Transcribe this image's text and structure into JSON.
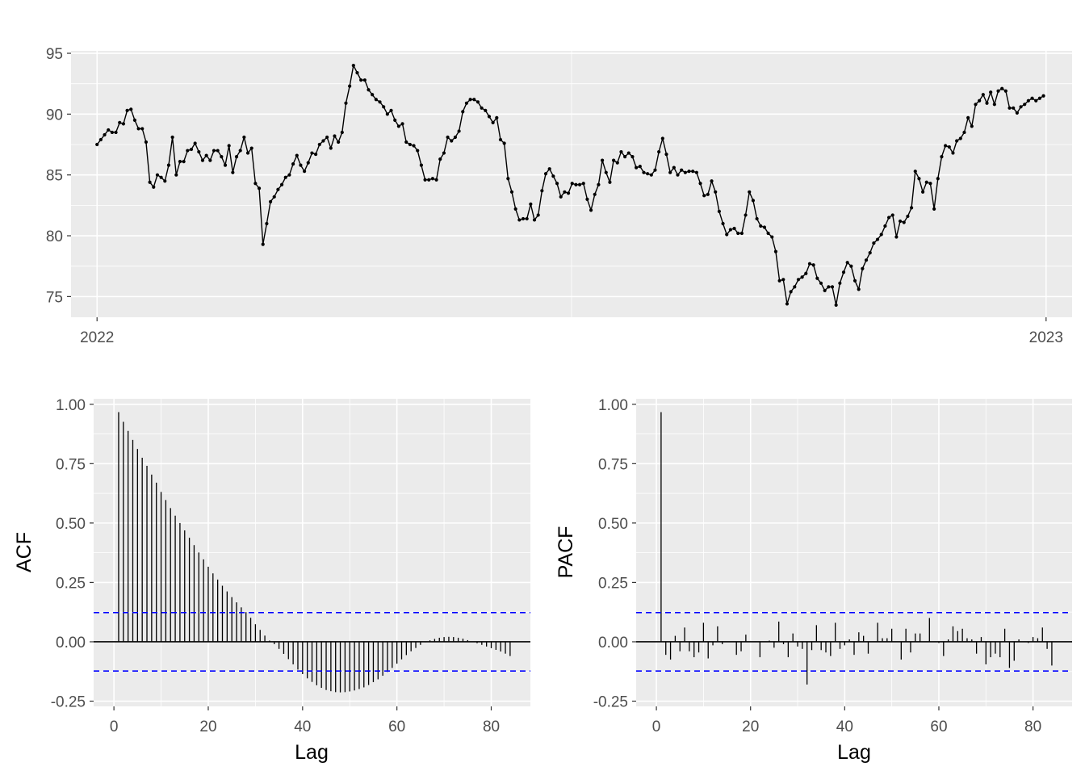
{
  "chart_data": [
    {
      "type": "line",
      "x_ticks": [
        "2022",
        "2023"
      ],
      "y_ticks": [
        "75",
        "80",
        "85",
        "90",
        "95"
      ],
      "ylim": [
        73.3,
        95.2
      ],
      "x_range_days": [
        -10,
        375
      ],
      "points": "yes",
      "grid": "on",
      "color": "#000000",
      "series": [
        {
          "values": [
            87.5,
            87.9,
            88.3,
            88.7,
            88.5,
            88.5,
            89.3,
            89.2,
            90.3,
            90.4,
            89.5,
            88.8,
            88.8,
            87.7,
            84.4,
            84.0,
            85.0,
            84.8,
            84.5,
            85.8,
            88.1,
            85.0,
            86.1,
            86.1,
            87.0,
            87.1,
            87.6,
            86.9,
            86.2,
            86.6,
            86.2,
            87.0,
            87.0,
            86.5,
            85.8,
            87.4,
            85.2,
            86.5,
            87.0,
            88.1,
            86.8,
            87.2,
            84.3,
            83.9,
            79.3,
            81.0,
            82.8,
            83.2,
            83.8,
            84.2,
            84.8,
            85.0,
            85.9,
            86.6,
            85.8,
            85.3,
            86.0,
            86.8,
            86.7,
            87.5,
            87.8,
            88.1,
            87.2,
            88.2,
            87.7,
            88.5,
            90.9,
            92.3,
            94.0,
            93.4,
            92.8,
            92.8,
            92.0,
            91.6,
            91.2,
            91.0,
            90.6,
            90.0,
            90.3,
            89.5,
            89.0,
            89.2,
            87.7,
            87.5,
            87.4,
            87.0,
            85.8,
            84.6,
            84.6,
            84.7,
            84.6,
            86.3,
            86.8,
            88.1,
            87.8,
            88.1,
            88.6,
            90.2,
            90.9,
            91.2,
            91.2,
            91.0,
            90.5,
            90.3,
            89.8,
            89.3,
            89.7,
            87.9,
            87.6,
            84.7,
            83.6,
            82.2,
            81.3,
            81.4,
            81.4,
            82.6,
            81.3,
            81.7,
            83.7,
            85.1,
            85.5,
            84.9,
            84.3,
            83.2,
            83.6,
            83.5,
            84.3,
            84.2,
            84.2,
            84.3,
            83.0,
            82.1,
            83.4,
            84.2,
            86.2,
            85.2,
            84.4,
            86.2,
            86.0,
            86.9,
            86.5,
            86.8,
            86.5,
            85.6,
            85.7,
            85.2,
            85.1,
            85.0,
            85.4,
            86.9,
            88.0,
            86.7,
            85.2,
            85.6,
            85.0,
            85.4,
            85.2,
            85.3,
            85.3,
            85.2,
            84.3,
            83.3,
            83.4,
            84.5,
            83.6,
            82.0,
            81.0,
            80.1,
            80.5,
            80.6,
            80.2,
            80.2,
            81.7,
            83.6,
            82.9,
            81.4,
            80.8,
            80.7,
            80.2,
            79.9,
            78.7,
            76.3,
            76.4,
            74.4,
            75.4,
            75.8,
            76.4,
            76.6,
            76.9,
            77.7,
            77.6,
            76.5,
            76.1,
            75.5,
            75.8,
            75.8,
            74.3,
            76.1,
            77.0,
            77.8,
            77.5,
            76.3,
            75.6,
            77.3,
            78.0,
            78.6,
            79.4,
            79.7,
            80.1,
            80.8,
            81.5,
            81.7,
            79.9,
            81.2,
            81.1,
            81.6,
            82.3,
            85.3,
            84.7,
            83.6,
            84.4,
            84.3,
            82.2,
            84.7,
            86.5,
            87.4,
            87.3,
            86.8,
            87.8,
            88.0,
            88.5,
            89.7,
            89.0,
            90.8,
            91.1,
            91.6,
            90.9,
            91.8,
            90.8,
            91.9,
            92.1,
            91.9,
            90.5,
            90.5,
            90.1,
            90.6,
            90.8,
            91.1,
            91.3,
            91.1,
            91.3,
            91.5
          ]
        }
      ]
    },
    {
      "type": "bar",
      "xlabel": "Lag",
      "ylabel": "ACF",
      "x_ticks": [
        "0",
        "20",
        "40",
        "60",
        "80"
      ],
      "y_ticks": [
        "-0.25",
        "0.00",
        "0.25",
        "0.50",
        "0.75",
        "1.00"
      ],
      "xlim": [
        -4.3,
        88.3
      ],
      "ylim": [
        -0.272,
        1.023
      ],
      "confidence_bound": 0.123,
      "bound_color": "#0000ff",
      "lags": [
        1,
        2,
        3,
        4,
        5,
        6,
        7,
        8,
        9,
        10,
        11,
        12,
        13,
        14,
        15,
        16,
        17,
        18,
        19,
        20,
        21,
        22,
        23,
        24,
        25,
        26,
        27,
        28,
        29,
        30,
        31,
        32,
        33,
        34,
        35,
        36,
        37,
        38,
        39,
        40,
        41,
        42,
        43,
        44,
        45,
        46,
        47,
        48,
        49,
        50,
        51,
        52,
        53,
        54,
        55,
        56,
        57,
        58,
        59,
        60,
        61,
        62,
        63,
        64,
        65,
        66,
        67,
        68,
        69,
        70,
        71,
        72,
        73,
        74,
        75,
        76,
        77,
        78,
        79,
        80,
        81,
        82,
        83,
        84
      ],
      "values": [
        0.967,
        0.926,
        0.888,
        0.85,
        0.812,
        0.775,
        0.741,
        0.704,
        0.67,
        0.631,
        0.597,
        0.563,
        0.531,
        0.5,
        0.469,
        0.438,
        0.407,
        0.376,
        0.347,
        0.316,
        0.288,
        0.262,
        0.236,
        0.212,
        0.188,
        0.166,
        0.145,
        0.125,
        0.101,
        0.074,
        0.05,
        0.026,
        0.005,
        -0.01,
        -0.03,
        -0.051,
        -0.073,
        -0.095,
        -0.117,
        -0.136,
        -0.154,
        -0.169,
        -0.183,
        -0.194,
        -0.203,
        -0.208,
        -0.212,
        -0.213,
        -0.212,
        -0.209,
        -0.205,
        -0.199,
        -0.192,
        -0.182,
        -0.17,
        -0.158,
        -0.143,
        -0.127,
        -0.11,
        -0.092,
        -0.074,
        -0.056,
        -0.04,
        -0.026,
        -0.013,
        -0.002,
        0.006,
        0.012,
        0.017,
        0.02,
        0.021,
        0.02,
        0.017,
        0.013,
        0.007,
        0.001,
        -0.006,
        -0.013,
        -0.02,
        -0.027,
        -0.034,
        -0.041,
        -0.05,
        -0.06
      ]
    },
    {
      "type": "bar",
      "xlabel": "Lag",
      "ylabel": "PACF",
      "x_ticks": [
        "0",
        "20",
        "40",
        "60",
        "80"
      ],
      "y_ticks": [
        "-0.25",
        "0.00",
        "0.25",
        "0.50",
        "0.75",
        "1.00"
      ],
      "xlim": [
        -4.3,
        88.3
      ],
      "ylim": [
        -0.272,
        1.023
      ],
      "confidence_bound": 0.123,
      "bound_color": "#0000ff",
      "lags": [
        1,
        2,
        3,
        4,
        5,
        6,
        7,
        8,
        9,
        10,
        11,
        12,
        13,
        14,
        15,
        16,
        17,
        18,
        19,
        20,
        21,
        22,
        23,
        24,
        25,
        26,
        27,
        28,
        29,
        30,
        31,
        32,
        33,
        34,
        35,
        36,
        37,
        38,
        39,
        40,
        41,
        42,
        43,
        44,
        45,
        46,
        47,
        48,
        49,
        50,
        51,
        52,
        53,
        54,
        55,
        56,
        57,
        58,
        59,
        60,
        61,
        62,
        63,
        64,
        65,
        66,
        67,
        68,
        69,
        70,
        71,
        72,
        73,
        74,
        75,
        76,
        77,
        78,
        79,
        80,
        81,
        82,
        83,
        84
      ],
      "values": [
        0.967,
        -0.055,
        -0.075,
        0.025,
        -0.04,
        0.06,
        -0.04,
        -0.065,
        -0.045,
        0.08,
        -0.07,
        -0.015,
        0.065,
        -0.01,
        0.0,
        0.0,
        -0.055,
        -0.04,
        0.03,
        0.0,
        0.0,
        -0.065,
        0.0,
        0.005,
        -0.025,
        0.085,
        -0.01,
        -0.065,
        0.035,
        -0.02,
        -0.03,
        -0.18,
        -0.035,
        0.07,
        -0.035,
        -0.045,
        -0.06,
        0.08,
        -0.03,
        -0.015,
        0.01,
        -0.055,
        0.04,
        0.025,
        -0.05,
        0.0,
        0.08,
        0.015,
        0.015,
        0.055,
        0.0,
        -0.075,
        0.055,
        -0.045,
        0.035,
        0.035,
        0.0,
        0.1,
        0.0,
        -0.005,
        -0.06,
        0.01,
        0.065,
        0.045,
        0.055,
        0.015,
        0.01,
        -0.05,
        0.02,
        -0.095,
        -0.065,
        -0.05,
        -0.065,
        0.055,
        -0.11,
        -0.08,
        0.01,
        0.0,
        -0.005,
        0.02,
        0.015,
        0.06,
        -0.03,
        -0.1
      ]
    }
  ]
}
